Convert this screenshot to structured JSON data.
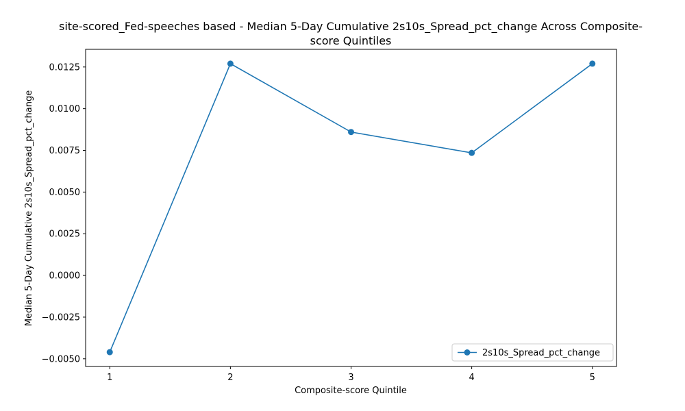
{
  "chart_data": {
    "type": "line",
    "title_line1": "site-scored_Fed-speeches based - Median 5-Day Cumulative 2s10s_Spread_pct_change Across Composite-",
    "title_line2": "score Quintiles",
    "xlabel": "Composite-score Quintile",
    "ylabel": "Median 5-Day Cumulative 2s10s_Spread_pct_change",
    "x": [
      1,
      2,
      3,
      4,
      5
    ],
    "x_tick_labels": [
      "1",
      "2",
      "3",
      "4",
      "5"
    ],
    "y_ticks": [
      -0.005,
      -0.0025,
      0.0,
      0.0025,
      0.005,
      0.0075,
      0.01,
      0.0125
    ],
    "y_tick_labels": [
      "−0.0050",
      "−0.0025",
      "0.0000",
      "0.0025",
      "0.0050",
      "0.0075",
      "0.0100",
      "0.0125"
    ],
    "xlim": [
      0.8,
      5.2
    ],
    "ylim": [
      -0.00546,
      0.01356
    ],
    "series": [
      {
        "name": "2s10s_Spread_pct_change",
        "values": [
          -0.0046,
          0.0127,
          0.0086,
          0.00735,
          0.0127
        ],
        "color": "#1f77b4",
        "marker": "circle"
      }
    ],
    "legend_position": "lower-right",
    "grid": false
  }
}
